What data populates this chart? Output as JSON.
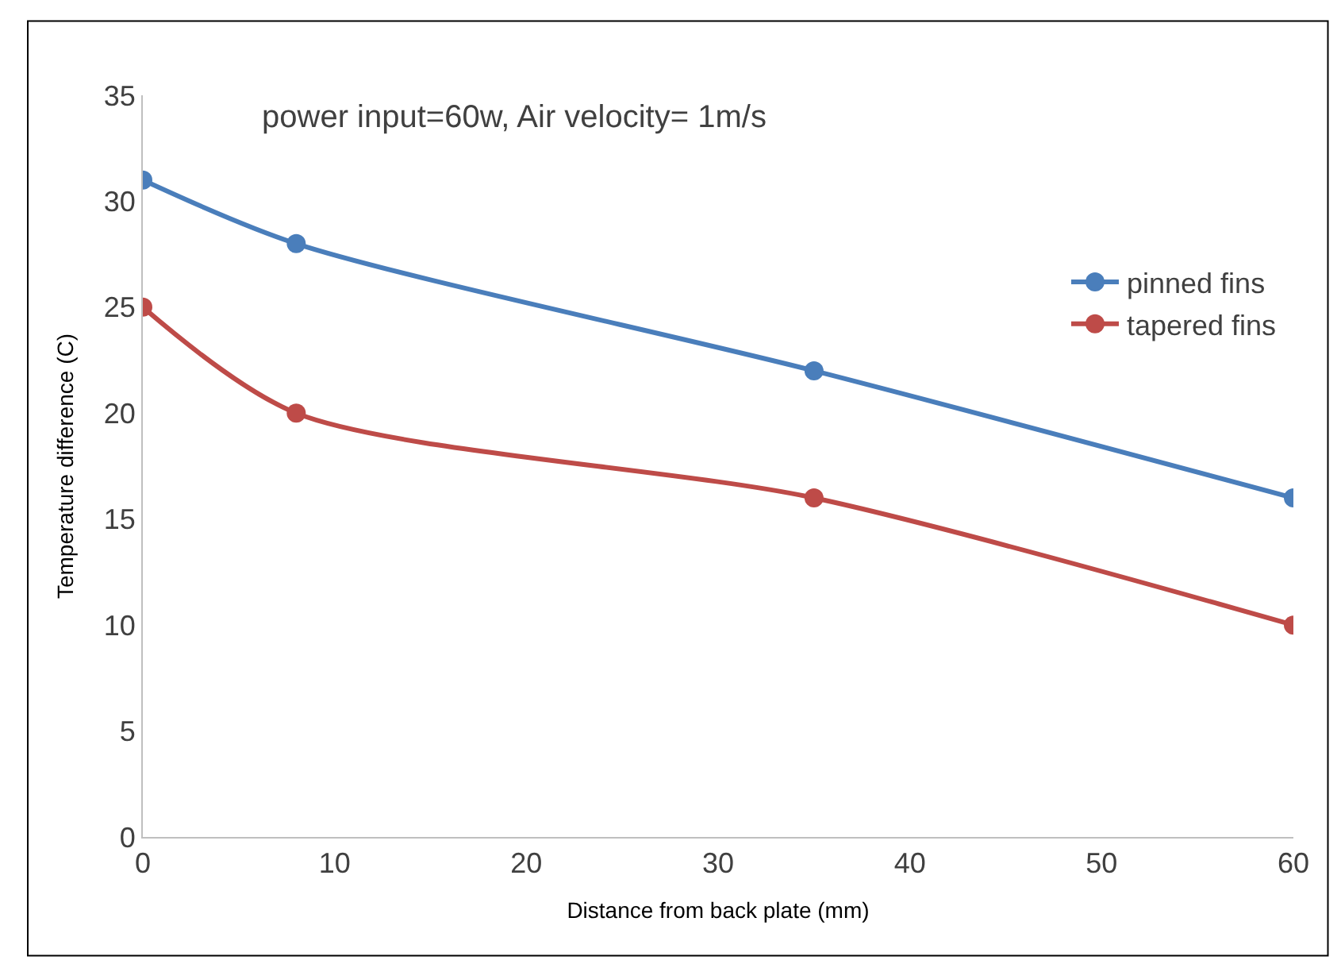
{
  "chart_data": {
    "type": "line",
    "xlabel": "Distance from back plate (mm)",
    "ylabel": "Temperature difference (C)",
    "annotations": [
      "power input=60w, Air velocity= 1m/s"
    ],
    "x": [
      0,
      8,
      35,
      60
    ],
    "series": [
      {
        "name": "pinned fins",
        "color": "#4a7ebb",
        "values": [
          31,
          28,
          22,
          16
        ]
      },
      {
        "name": "tapered fins",
        "color": "#be4b48",
        "values": [
          25,
          20,
          16,
          10
        ]
      }
    ],
    "xlim": [
      0,
      60
    ],
    "xticks": [
      0,
      10,
      20,
      30,
      40,
      50,
      60
    ],
    "ylim": [
      0,
      35
    ],
    "yticks": [
      0,
      5,
      10,
      15,
      20,
      25,
      30,
      35
    ],
    "legend": "right",
    "marker": "circle",
    "line_style": "solid"
  }
}
